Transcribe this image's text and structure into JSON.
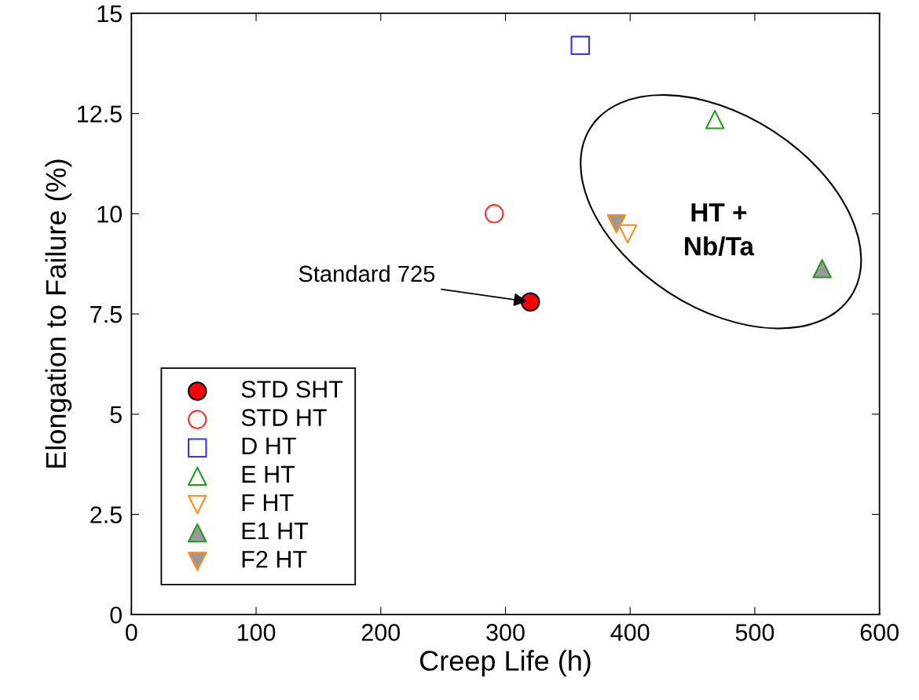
{
  "chart_data": {
    "type": "scatter",
    "xlabel": "Creep Life (h)",
    "ylabel": "Elongation to Failure (%)",
    "xlim": [
      0,
      600
    ],
    "xticks": [
      0,
      100,
      200,
      300,
      400,
      500,
      600
    ],
    "ylim": [
      0,
      15
    ],
    "yticks": [
      0,
      2.5,
      5,
      7.5,
      10,
      12.5,
      15
    ],
    "grid": false,
    "legend": "bottom left",
    "series": [
      {
        "name": "STD SHT",
        "color": "#000000",
        "colors": [
          "#ff0000"
        ],
        "marker": "circle",
        "x": [
          320
        ],
        "values": [
          7.8
        ]
      },
      {
        "name": "STD HT",
        "color": "#ff3333",
        "marker": "circle",
        "x": [
          291
        ],
        "values": [
          10.0
        ]
      },
      {
        "name": "D HT",
        "color": "#3333ff",
        "marker": "square",
        "x": [
          360
        ],
        "values": [
          14.2
        ]
      },
      {
        "name": "E HT",
        "color": "#229922",
        "marker": "triangle",
        "x": [
          468
        ],
        "values": [
          12.35
        ]
      },
      {
        "name": "F HT",
        "color": "#ff8c1a",
        "marker": "triangle_down",
        "x": [
          398
        ],
        "values": [
          9.5
        ]
      },
      {
        "name": "E1 HT",
        "color": "#229922",
        "colors": [
          "#999999"
        ],
        "marker": "triangle",
        "x": [
          554
        ],
        "values": [
          8.63
        ]
      },
      {
        "name": "F2 HT",
        "color": "#ff8c1a",
        "colors": [
          "#999999"
        ],
        "marker": "triangle_down",
        "x": [
          389
        ],
        "values": [
          9.75
        ]
      }
    ],
    "annotations": [
      {
        "text": "Standard 725",
        "x": 320,
        "y": 7.8
      },
      "HT +\nNb/Ta"
    ]
  }
}
